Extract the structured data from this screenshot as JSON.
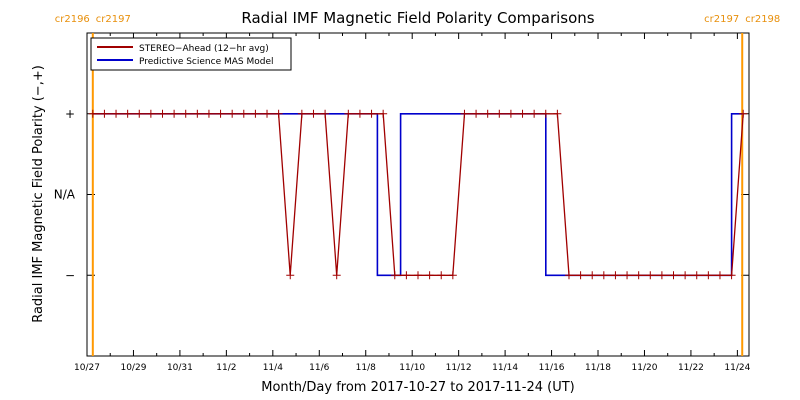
{
  "chart_data": {
    "type": "line",
    "title": "Radial IMF Magnetic Field Polarity Comparisons",
    "xlabel": "Month/Day from 2017-10-27 to 2017-11-24 (UT)",
    "ylabel": "Radial IMF Magnetic Field Polarity (−,+)",
    "x_start": "2017-10-27",
    "x_end": "2017-11-24T12:00",
    "x_ticks": [
      "10/27",
      "10/29",
      "10/31",
      "11/2",
      "11/4",
      "11/6",
      "11/8",
      "11/10",
      "11/12",
      "11/14",
      "11/16",
      "11/18",
      "11/20",
      "11/22",
      "11/24"
    ],
    "y_ticks": [
      "+",
      "N/A",
      "−"
    ],
    "y_levels": [
      1,
      0,
      -1
    ],
    "ylim": [
      -2,
      2
    ],
    "rotation_markers": [
      {
        "x": "2017-10-27T06:00",
        "left_label": "cr2196",
        "right_label": "cr2197"
      },
      {
        "x": "2017-11-24T05:00",
        "left_label": "cr2197",
        "right_label": "cr2198"
      }
    ],
    "legend_placement": "top-left",
    "colors": {
      "stereo": "#a00000",
      "model": "#0000cc",
      "rotation": "#ff9900",
      "frame": "#000000"
    },
    "series": [
      {
        "name": "STEREO−Ahead (12−hr avg)",
        "style": "line-with-plus-markers",
        "x": [
          "2017-10-27T06:00",
          "2017-10-27T18:00",
          "2017-10-28T06:00",
          "2017-10-28T18:00",
          "2017-10-29T06:00",
          "2017-10-29T18:00",
          "2017-10-30T06:00",
          "2017-10-30T18:00",
          "2017-10-31T06:00",
          "2017-10-31T18:00",
          "2017-11-01T06:00",
          "2017-11-01T18:00",
          "2017-11-02T06:00",
          "2017-11-02T18:00",
          "2017-11-03T06:00",
          "2017-11-03T18:00",
          "2017-11-04T06:00",
          "2017-11-04T18:00",
          "2017-11-05T06:00",
          "2017-11-05T18:00",
          "2017-11-06T06:00",
          "2017-11-06T18:00",
          "2017-11-07T06:00",
          "2017-11-07T18:00",
          "2017-11-08T06:00",
          "2017-11-08T18:00",
          "2017-11-09T06:00",
          "2017-11-09T18:00",
          "2017-11-10T06:00",
          "2017-11-10T18:00",
          "2017-11-11T06:00",
          "2017-11-11T18:00",
          "2017-11-12T06:00",
          "2017-11-12T18:00",
          "2017-11-13T06:00",
          "2017-11-13T18:00",
          "2017-11-14T06:00",
          "2017-11-14T18:00",
          "2017-11-15T06:00",
          "2017-11-15T18:00",
          "2017-11-16T06:00",
          "2017-11-16T18:00",
          "2017-11-17T06:00",
          "2017-11-17T18:00",
          "2017-11-18T06:00",
          "2017-11-18T18:00",
          "2017-11-19T06:00",
          "2017-11-19T18:00",
          "2017-11-20T06:00",
          "2017-11-20T18:00",
          "2017-11-21T06:00",
          "2017-11-21T18:00",
          "2017-11-22T06:00",
          "2017-11-22T18:00",
          "2017-11-23T06:00",
          "2017-11-23T18:00",
          "2017-11-24T06:00"
        ],
        "y": [
          1,
          1,
          1,
          1,
          1,
          1,
          1,
          1,
          1,
          1,
          1,
          1,
          1,
          1,
          1,
          1,
          1,
          -1,
          1,
          1,
          1,
          -1,
          1,
          1,
          1,
          1,
          -1,
          -1,
          -1,
          -1,
          -1,
          -1,
          1,
          1,
          1,
          1,
          1,
          1,
          1,
          1,
          1,
          -1,
          -1,
          -1,
          -1,
          -1,
          -1,
          -1,
          -1,
          -1,
          -1,
          -1,
          -1,
          -1,
          -1,
          -1,
          1
        ]
      },
      {
        "name": "Predictive Science MAS Model",
        "style": "step",
        "x": [
          "2017-10-27T06:00",
          "2017-11-08T12:00",
          "2017-11-08T12:00",
          "2017-11-09T12:00",
          "2017-11-09T12:00",
          "2017-11-15T18:00",
          "2017-11-15T18:00",
          "2017-11-23T18:00",
          "2017-11-23T18:00",
          "2017-11-24T05:00"
        ],
        "y": [
          1,
          1,
          -1,
          -1,
          1,
          1,
          -1,
          -1,
          1,
          1
        ]
      }
    ]
  }
}
